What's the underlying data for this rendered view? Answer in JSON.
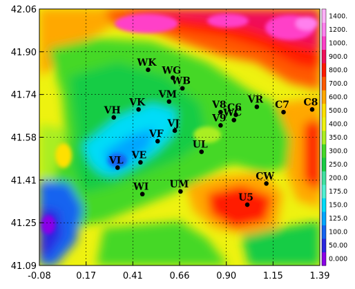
{
  "map": {
    "x_ticks": [
      "-0.08",
      "0.17",
      "0.41",
      "0.66",
      "0.90",
      "1.15",
      "1.39"
    ],
    "y_ticks": [
      "42.06",
      "41.90",
      "41.74",
      "41.58",
      "41.41",
      "41.25",
      "41.09"
    ],
    "colorbar": {
      "levels": [
        "0.000",
        "50.00",
        "100.0",
        "125.0",
        "150.0",
        "175.0",
        "200.0",
        "250.0",
        "300.0",
        "350.0",
        "400.0",
        "500.0",
        "600.0",
        "700.0",
        "800.0",
        "900.0",
        "1000.",
        "1200.",
        "1400."
      ],
      "colors": [
        "#8a00e8",
        "#2a26e0",
        "#1464f0",
        "#00a6ff",
        "#00dcf8",
        "#50f0d2",
        "#40e0a0",
        "#18cc44",
        "#44d828",
        "#aaee22",
        "#eef210",
        "#ffe000",
        "#ffa800",
        "#ff5a00",
        "#ff1a00",
        "#f0105a",
        "#ff40c8",
        "#ff80ee",
        "#ffb0f8"
      ]
    },
    "stations": [
      {
        "id": "WK",
        "lon": 0.49,
        "lat": 41.83
      },
      {
        "id": "WG",
        "lon": 0.62,
        "lat": 41.8
      },
      {
        "id": "WB",
        "lon": 0.67,
        "lat": 41.76
      },
      {
        "id": "VM",
        "lon": 0.6,
        "lat": 41.71
      },
      {
        "id": "VH",
        "lon": 0.31,
        "lat": 41.65
      },
      {
        "id": "VK",
        "lon": 0.44,
        "lat": 41.68
      },
      {
        "id": "V8",
        "lon": 0.87,
        "lat": 41.67
      },
      {
        "id": "C6",
        "lon": 0.95,
        "lat": 41.66
      },
      {
        "id": "VR",
        "lon": 1.06,
        "lat": 41.69
      },
      {
        "id": "C7",
        "lon": 1.2,
        "lat": 41.67
      },
      {
        "id": "C8",
        "lon": 1.35,
        "lat": 41.68
      },
      {
        "id": "VJ",
        "lon": 0.63,
        "lat": 41.6
      },
      {
        "id": "V9",
        "lon": 0.87,
        "lat": 41.62
      },
      {
        "id": "WC",
        "lon": 0.94,
        "lat": 41.64
      },
      {
        "id": "VF",
        "lon": 0.54,
        "lat": 41.56
      },
      {
        "id": "UL",
        "lon": 0.77,
        "lat": 41.52
      },
      {
        "id": "VE",
        "lon": 0.45,
        "lat": 41.48
      },
      {
        "id": "VL",
        "lon": 0.33,
        "lat": 41.46
      },
      {
        "id": "CW",
        "lon": 1.11,
        "lat": 41.4
      },
      {
        "id": "WI",
        "lon": 0.46,
        "lat": 41.36
      },
      {
        "id": "UM",
        "lon": 0.66,
        "lat": 41.37
      },
      {
        "id": "U5",
        "lon": 1.01,
        "lat": 41.32
      }
    ]
  }
}
